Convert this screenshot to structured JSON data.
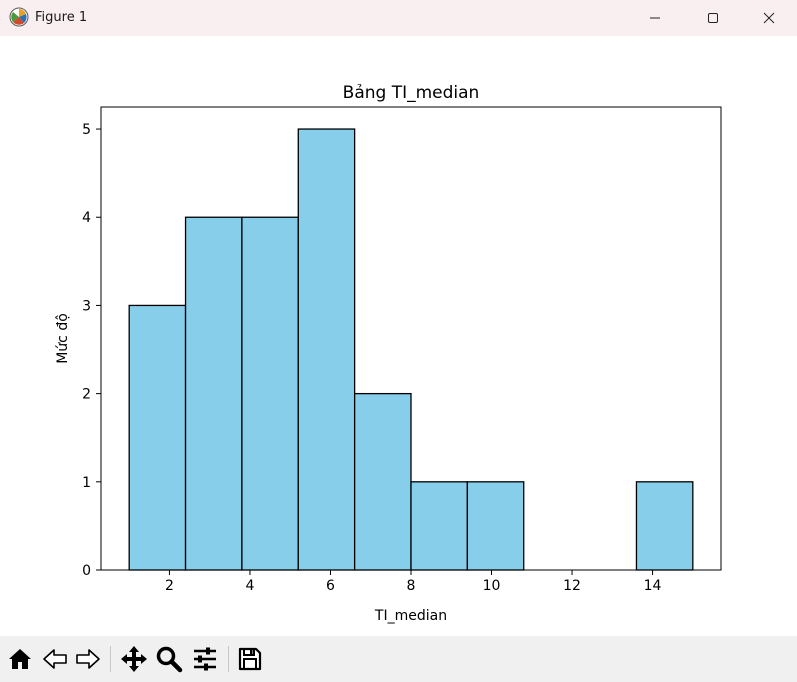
{
  "window": {
    "title": "Figure 1",
    "controls": [
      "minimize-icon",
      "maximize-icon",
      "close-icon"
    ]
  },
  "toolbar": {
    "buttons": [
      "home-icon",
      "back-icon",
      "forward-icon",
      "pan-icon",
      "zoom-icon",
      "configure-subplots-icon",
      "save-icon"
    ]
  },
  "colors": {
    "bar_fill": "#87CEEB",
    "bar_edge": "#000000",
    "titlebar_bg": "#f9eff1",
    "toolbar_bg": "#f0f0f0"
  },
  "chart_data": {
    "type": "bar",
    "title": "Bảng TI_median",
    "xlabel": "TI_median",
    "ylabel": "Mức độ",
    "bin_edges": [
      1.0,
      2.4,
      3.8,
      5.2,
      6.6,
      8.0,
      9.4,
      10.8,
      12.2,
      13.6,
      15.0
    ],
    "values": [
      3,
      4,
      4,
      5,
      2,
      1,
      1,
      0,
      0,
      1
    ],
    "xlim": [
      0.3,
      15.7
    ],
    "ylim": [
      0,
      5.25
    ],
    "xticks": [
      2,
      4,
      6,
      8,
      10,
      12,
      14
    ],
    "yticks": [
      0,
      1,
      2,
      3,
      4,
      5
    ],
    "grid": false
  }
}
